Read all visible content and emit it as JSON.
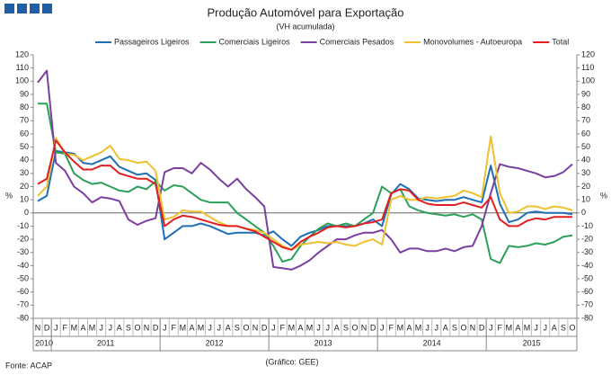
{
  "chart_data": {
    "type": "line",
    "title": "Produção Automóvel para Exportação",
    "subtitle": "(VH acumulada)",
    "source": "Fonte: ACAP",
    "credit": "(Gráfico: GEE)",
    "ylabel": "%",
    "y2label": "%",
    "categories": [
      "N",
      "D",
      "J",
      "F",
      "M",
      "A",
      "M",
      "J",
      "J",
      "A",
      "S",
      "O",
      "N",
      "D",
      "J",
      "F",
      "M",
      "A",
      "M",
      "J",
      "J",
      "A",
      "S",
      "O",
      "N",
      "D",
      "J",
      "F",
      "M",
      "A",
      "M",
      "J",
      "J",
      "A",
      "S",
      "O",
      "N",
      "D",
      "J",
      "F",
      "M",
      "A",
      "M",
      "J",
      "J",
      "A",
      "S",
      "O",
      "N",
      "D",
      "J",
      "F",
      "M",
      "A",
      "M",
      "J",
      "J",
      "A",
      "S",
      "O"
    ],
    "category_groups": [
      {
        "label": "2010",
        "count": 2
      },
      {
        "label": "2011",
        "count": 12
      },
      {
        "label": "2012",
        "count": 12
      },
      {
        "label": "2013",
        "count": 12
      },
      {
        "label": "2014",
        "count": 12
      },
      {
        "label": "2015",
        "count": 10
      }
    ],
    "ylim": [
      -80,
      120
    ],
    "yticks": [
      -80,
      -70,
      -60,
      -50,
      -40,
      -30,
      -20,
      -10,
      0,
      10,
      20,
      30,
      40,
      50,
      60,
      70,
      80,
      90,
      100,
      110,
      120
    ],
    "y2lim": [
      -80,
      120
    ],
    "y2ticks": [
      -80,
      -70,
      -60,
      -50,
      -40,
      -30,
      -20,
      -10,
      0,
      10,
      20,
      30,
      40,
      50,
      60,
      70,
      80,
      90,
      100,
      110,
      120
    ],
    "grid": false,
    "legend": "top",
    "series": [
      {
        "name": "Passageiros Ligeiros",
        "color": "#1f6fb5",
        "values": [
          9,
          13,
          47,
          46,
          45,
          38,
          37,
          40,
          43,
          35,
          32,
          29,
          30,
          25,
          -20,
          -15,
          -10,
          -10,
          -8,
          -10,
          -13,
          -16,
          -15,
          -15,
          -15,
          -17,
          -14,
          -20,
          -25,
          -18,
          -15,
          -13,
          -10,
          -10,
          -10,
          -10,
          -8,
          -5,
          -10,
          14,
          22,
          18,
          11,
          10,
          9,
          10,
          10,
          12,
          10,
          8,
          36,
          7,
          -7,
          -5,
          0,
          1,
          0,
          0,
          0,
          -1
        ]
      },
      {
        "name": "Comerciais Ligeiros",
        "color": "#2ca05a",
        "values": [
          83,
          83,
          46,
          45,
          30,
          25,
          22,
          23,
          20,
          17,
          16,
          20,
          18,
          24,
          17,
          21,
          20,
          15,
          10,
          8,
          8,
          8,
          0,
          -5,
          -10,
          -15,
          -25,
          -37,
          -35,
          -25,
          -18,
          -12,
          -8,
          -10,
          -8,
          -10,
          -5,
          0,
          20,
          15,
          18,
          5,
          2,
          0,
          -1,
          -2,
          -1,
          -3,
          -1,
          -5,
          -35,
          -38,
          -25,
          -26,
          -25,
          -23,
          -24,
          -22,
          -18,
          -17
        ]
      },
      {
        "name": "Comerciais Pesados",
        "color": "#7b3fa0",
        "values": [
          99,
          108,
          38,
          32,
          20,
          15,
          8,
          12,
          11,
          9,
          -5,
          -9,
          -6,
          -4,
          31,
          34,
          34,
          30,
          38,
          33,
          26,
          20,
          26,
          18,
          12,
          5,
          -41,
          -42,
          -43,
          -40,
          -36,
          -30,
          -25,
          -20,
          -20,
          -17,
          -15,
          -15,
          -13,
          -20,
          -30,
          -27,
          -27,
          -29,
          -29,
          -27,
          -29,
          -26,
          -25,
          -10,
          15,
          37,
          35,
          34,
          32,
          30,
          27,
          28,
          31,
          37
        ]
      },
      {
        "name": "Monovolumes - Autoeuropa",
        "color": "#efc030",
        "values": [
          13,
          20,
          57,
          45,
          44,
          40,
          43,
          46,
          51,
          41,
          40,
          38,
          39,
          32,
          -5,
          -3,
          2,
          1,
          1,
          -3,
          -7,
          -10,
          -10,
          -12,
          -13,
          -15,
          -20,
          -25,
          -28,
          -24,
          -23,
          -22,
          -23,
          -22,
          -24,
          -25,
          -22,
          -20,
          -24,
          10,
          13,
          10,
          10,
          12,
          11,
          12,
          13,
          17,
          15,
          12,
          58,
          15,
          0,
          1,
          5,
          5,
          3,
          5,
          4,
          2
        ]
      },
      {
        "name": "Total",
        "color": "#e02020",
        "values": [
          22,
          26,
          55,
          46,
          39,
          33,
          33,
          36,
          36,
          30,
          28,
          26,
          26,
          22,
          -10,
          -5,
          -2,
          -3,
          -5,
          -7,
          -9,
          -10,
          -10,
          -12,
          -14,
          -18,
          -22,
          -26,
          -28,
          -22,
          -18,
          -15,
          -11,
          -10,
          -11,
          -10,
          -8,
          -7,
          -5,
          15,
          18,
          17,
          10,
          7,
          6,
          6,
          6,
          8,
          6,
          4,
          12,
          -5,
          -10,
          -10,
          -6,
          -4,
          -5,
          -3,
          -3,
          -3
        ]
      }
    ]
  }
}
